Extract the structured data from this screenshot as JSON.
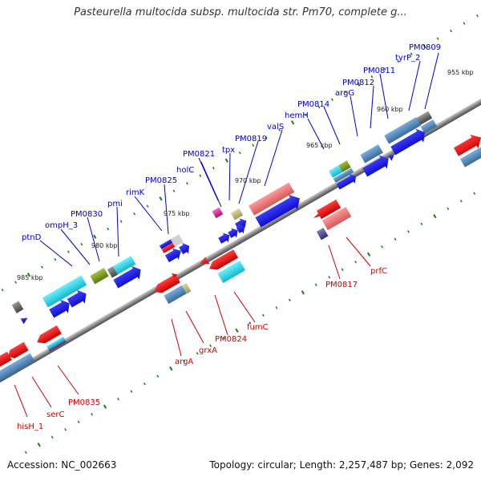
{
  "title": "Pasteurella multocida subsp. multocida str. Pm70, complete g...",
  "footer": {
    "accession": "Accession: NC_002663",
    "summary": "Topology: circular; Length: 2,257,487 bp; Genes: 2,092"
  },
  "colors": {
    "top_strand_label": "#0000cc",
    "bottom_strand_label": "#cc0000",
    "backbone": "#888888",
    "tick": "#1a7a1a"
  },
  "scale_ticks": [
    "955 kbp",
    "960 kbp",
    "965 kbp",
    "970 kbp",
    "975 kbp",
    "980 kbp",
    "985 kbp"
  ],
  "top_labels": [
    "PM0809",
    "tyrP_2",
    "PM0811",
    "PM0812",
    "argG",
    "PM0814",
    "hemH",
    "valS",
    "PM0819",
    "tpx",
    "holC",
    "PM0821",
    "PM0825",
    "rimK",
    "pmi",
    "PM0830",
    "ompH_3",
    "ptnD"
  ],
  "bottom_labels": [
    "prfC",
    "PM0817",
    "fumC",
    "PM0824",
    "grxA",
    "argA",
    "PM0835",
    "serC",
    "hisH_1"
  ]
}
